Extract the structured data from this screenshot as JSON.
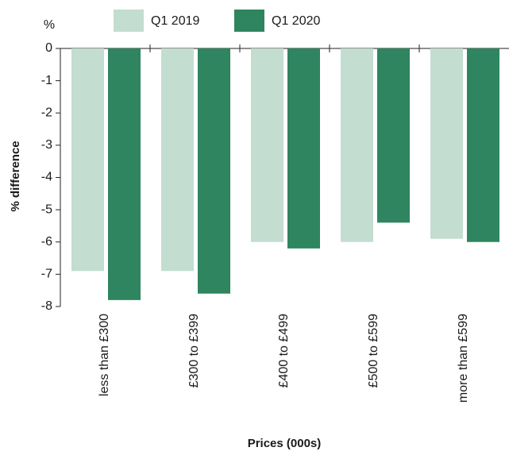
{
  "chart_data": {
    "type": "bar",
    "y_unit": "%",
    "y_label": "% difference",
    "x_label": "Prices (000s)",
    "categories": [
      "less than £300",
      "£300 to £399",
      "£400 to £499",
      "£500 to £599",
      "more than £599"
    ],
    "series": [
      {
        "name": "Q1 2019",
        "color": "#c3ddd1",
        "values": [
          -6.9,
          -6.9,
          -6.0,
          -6.0,
          -5.9
        ]
      },
      {
        "name": "Q1 2020",
        "color": "#2e8560",
        "values": [
          -7.8,
          -7.6,
          -6.2,
          -5.4,
          -6.0
        ]
      }
    ],
    "ylim": [
      -8,
      0
    ],
    "yticks": [
      0,
      -1,
      -2,
      -3,
      -4,
      -5,
      -6,
      -7,
      -8
    ],
    "legend": "top"
  }
}
